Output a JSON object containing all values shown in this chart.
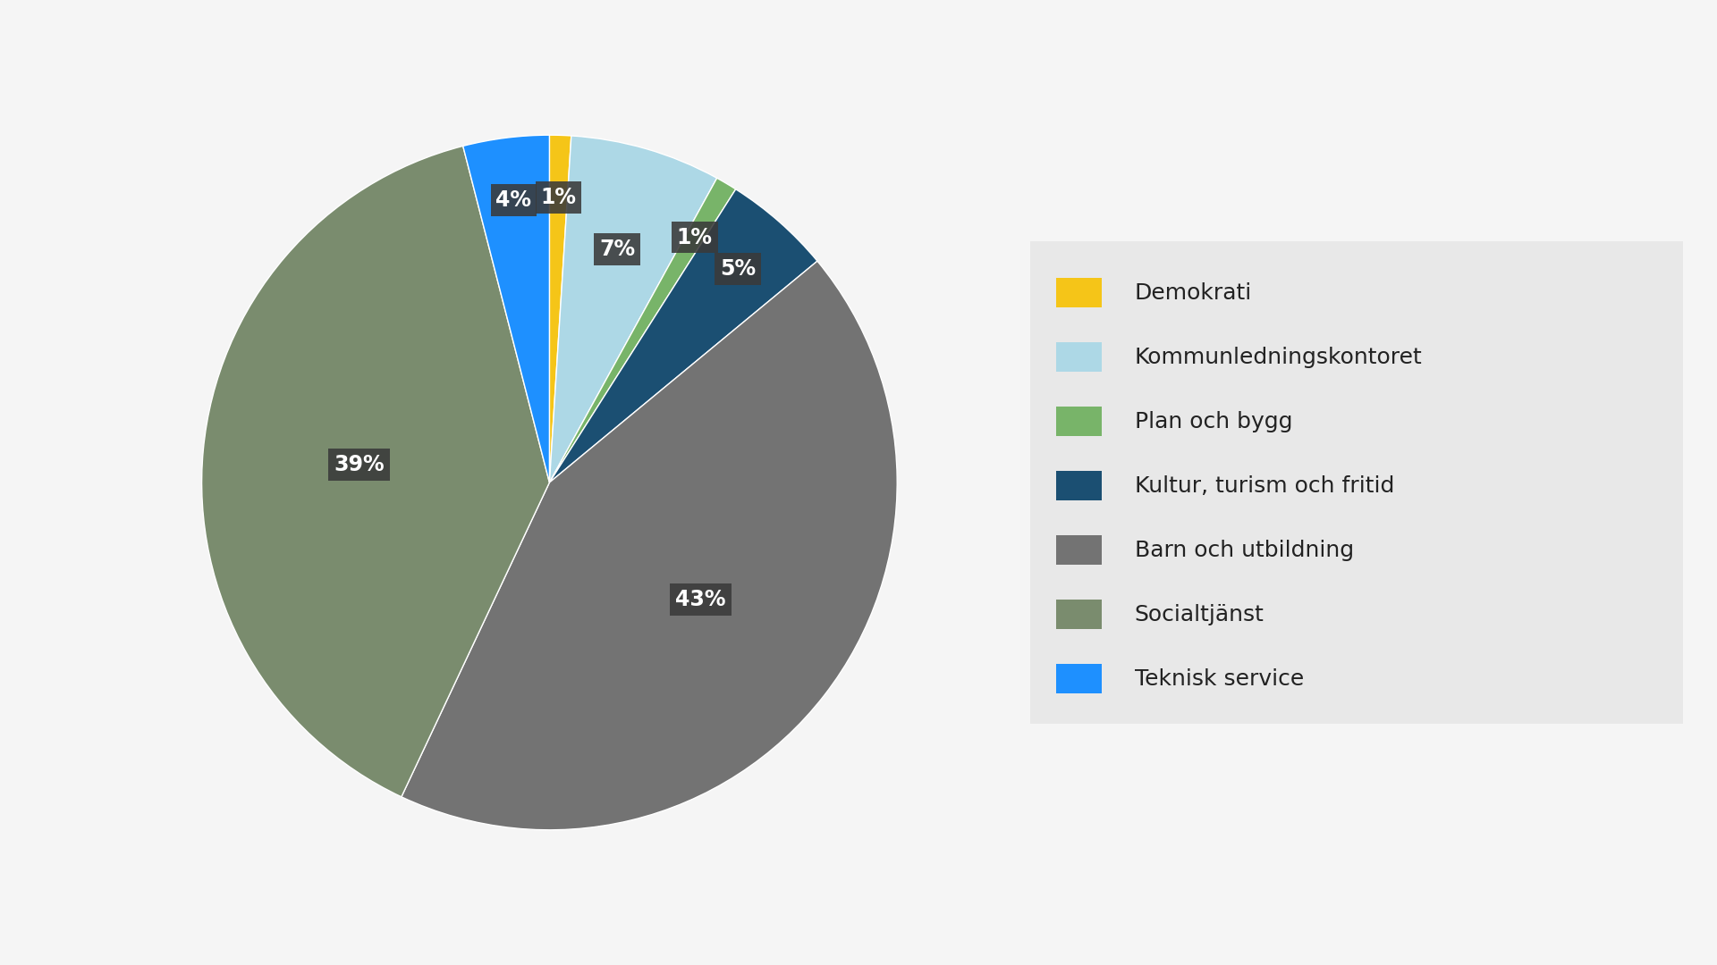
{
  "labels": [
    "Demokrati",
    "Kommunledningskontoret",
    "Plan och bygg",
    "Kultur, turism och fritid",
    "Barn och utbildning",
    "Socialtjänst",
    "Teknisk service"
  ],
  "values": [
    1,
    7,
    1,
    5,
    43,
    39,
    4
  ],
  "colors": [
    "#F5C518",
    "#ADD8E6",
    "#78B469",
    "#1B4F72",
    "#737373",
    "#7A8C6E",
    "#1E90FF"
  ],
  "pct_labels": [
    "1%",
    "7%",
    "1%",
    "5%",
    "43%",
    "39%",
    "4%"
  ],
  "label_box_color": "#3a3a3a",
  "label_text_color": "#ffffff",
  "background_color": "#f5f5f5",
  "legend_background": "#e8e8e8",
  "startangle": 90,
  "figsize": [
    19.2,
    10.8
  ],
  "dpi": 100
}
